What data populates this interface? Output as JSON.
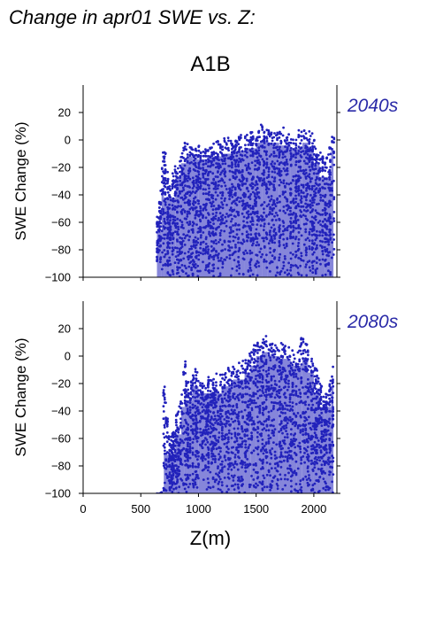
{
  "title": "Change in apr01 SWE vs. Z:",
  "colors": {
    "points": "#2222bb",
    "period_label": "#2a2aa8",
    "axes": "#000000"
  },
  "chart_data": [
    {
      "type": "scatter",
      "title": "A1B",
      "period": "2040s",
      "ylabel": "SWE Change (%)",
      "xlabel": "",
      "xlim": [
        0,
        2200
      ],
      "ylim": [
        -100,
        40
      ],
      "xticks": [
        0,
        500,
        1000,
        1500,
        2000
      ],
      "xtick_labels_shown": false,
      "yticks": [
        -100,
        -80,
        -60,
        -40,
        -20,
        0,
        20
      ],
      "ytick_labels": [
        "−100",
        "−80",
        "−60",
        "−40",
        "−20",
        "0",
        "20"
      ],
      "grid": false,
      "point_density": "dense",
      "envelope": {
        "x": [
          640,
          680,
          700,
          750,
          800,
          850,
          900,
          950,
          1000,
          1100,
          1200,
          1300,
          1400,
          1500,
          1550,
          1600,
          1700,
          1800,
          1850,
          1900,
          1950,
          2000,
          2050,
          2100,
          2150,
          2170
        ],
        "ymax": [
          -55,
          -25,
          2,
          -30,
          -15,
          -5,
          5,
          0,
          -2,
          0,
          2,
          4,
          6,
          10,
          12,
          11,
          10,
          8,
          6,
          12,
          10,
          5,
          -5,
          -15,
          6,
          8
        ],
        "ymin": [
          -100,
          -100,
          -100,
          -100,
          -100,
          -100,
          -100,
          -100,
          -100,
          -100,
          -100,
          -100,
          -100,
          -100,
          -100,
          -100,
          -100,
          -100,
          -100,
          -100,
          -100,
          -100,
          -100,
          -100,
          -100,
          -100
        ]
      }
    },
    {
      "type": "scatter",
      "title": "",
      "period": "2080s",
      "ylabel": "SWE Change (%)",
      "xlabel": "Z(m)",
      "xlim": [
        0,
        2200
      ],
      "ylim": [
        -100,
        40
      ],
      "xticks": [
        0,
        500,
        1000,
        1500,
        2000
      ],
      "xtick_labels": [
        "0",
        "500",
        "1000",
        "1500",
        "2000"
      ],
      "xtick_labels_shown": true,
      "yticks": [
        -100,
        -80,
        -60,
        -40,
        -20,
        0,
        20
      ],
      "ytick_labels": [
        "−100",
        "−80",
        "−60",
        "−40",
        "−20",
        "0",
        "20"
      ],
      "grid": false,
      "point_density": "dense",
      "envelope": {
        "x": [
          640,
          680,
          700,
          750,
          800,
          850,
          880,
          900,
          950,
          1000,
          1100,
          1200,
          1300,
          1400,
          1450,
          1500,
          1550,
          1600,
          1700,
          1800,
          1850,
          1900,
          1950,
          2000,
          2050,
          2100,
          2150,
          2170
        ],
        "ymax": [
          -100,
          -100,
          -12,
          -60,
          -45,
          -25,
          8,
          -20,
          -5,
          -10,
          -15,
          -10,
          -5,
          0,
          5,
          12,
          15,
          16,
          12,
          10,
          5,
          17,
          10,
          0,
          -15,
          -25,
          -10,
          0
        ],
        "ymin": [
          -100,
          -100,
          -100,
          -100,
          -100,
          -100,
          -100,
          -100,
          -100,
          -100,
          -100,
          -100,
          -100,
          -100,
          -100,
          -100,
          -100,
          -100,
          -100,
          -100,
          -100,
          -100,
          -100,
          -100,
          -100,
          -100,
          -100,
          -100
        ]
      }
    }
  ]
}
